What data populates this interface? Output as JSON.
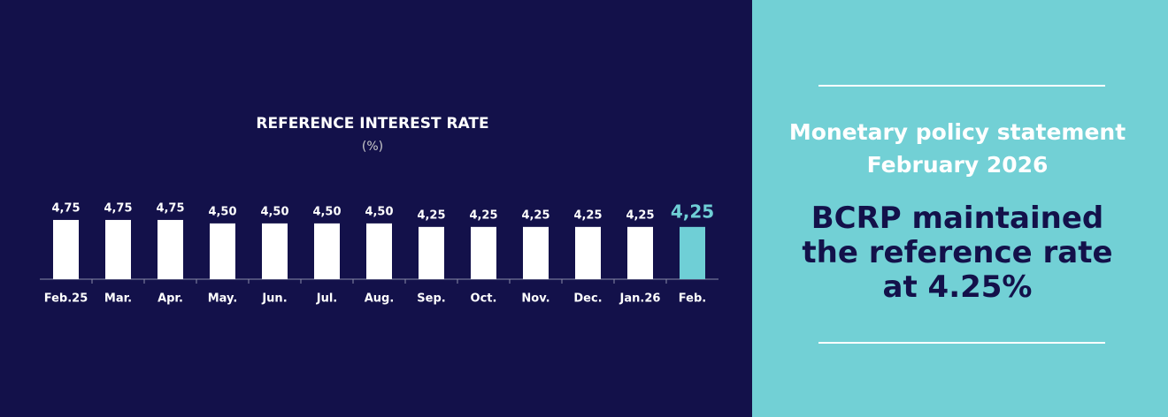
{
  "chart_data": {
    "type": "bar",
    "title": "REFERENCE INTEREST RATE",
    "subtitle": "(%)",
    "categories": [
      "Feb.25",
      "Mar.",
      "Apr.",
      "May.",
      "Jun.",
      "Jul.",
      "Aug.",
      "Sep.",
      "Oct.",
      "Nov.",
      "Dec.",
      "Jan.26",
      "Feb."
    ],
    "values": [
      4.75,
      4.75,
      4.75,
      4.5,
      4.5,
      4.5,
      4.5,
      4.25,
      4.25,
      4.25,
      4.25,
      4.25,
      4.25
    ],
    "value_labels": [
      "4,75",
      "4,75",
      "4,75",
      "4,50",
      "4,50",
      "4,50",
      "4,50",
      "4,25",
      "4,25",
      "4,25",
      "4,25",
      "4,25",
      "4,25"
    ],
    "colors": [
      "#ffffff",
      "#ffffff",
      "#ffffff",
      "#ffffff",
      "#ffffff",
      "#ffffff",
      "#ffffff",
      "#ffffff",
      "#ffffff",
      "#ffffff",
      "#ffffff",
      "#ffffff",
      "#6fcfd6"
    ],
    "ylim": [
      0.5,
      5
    ]
  },
  "panel": {
    "kicker": [
      "Monetary policy statement",
      "February 2026"
    ],
    "headline": "BCRP maintained the reference rate at 4.25%"
  }
}
